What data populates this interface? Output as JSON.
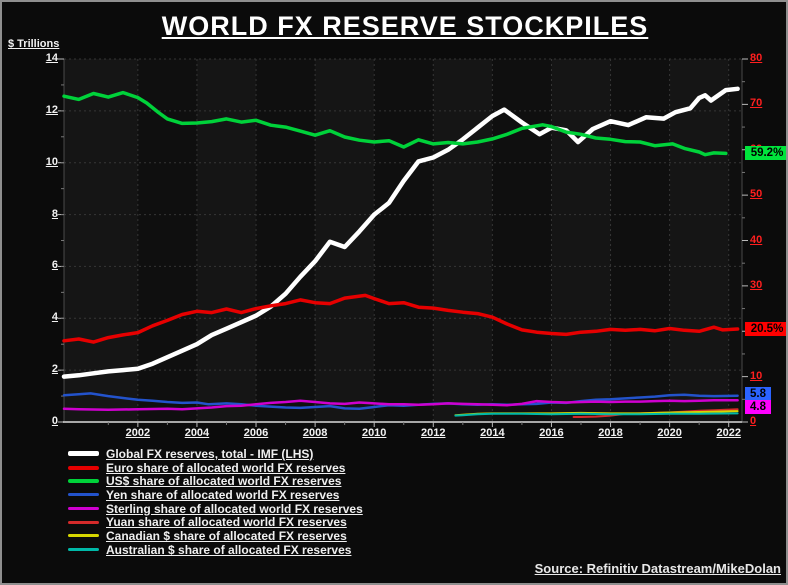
{
  "title": "WORLD FX RESERVE STOCKPILES",
  "left_axis_label": "$ Trillions",
  "source": "Source: Refinitiv Datastream/MikeDolan",
  "chart_data": {
    "type": "line",
    "title": "WORLD FX RESERVE STOCKPILES",
    "grid": true,
    "legend_position": "bottom-left",
    "x_axis": {
      "range": [
        1999.5,
        2022.45
      ],
      "ticks": [
        2002,
        2004,
        2006,
        2008,
        2010,
        2012,
        2014,
        2016,
        2018,
        2020,
        2022
      ]
    },
    "left_axis": {
      "label": "$ Trillions",
      "range": [
        0,
        14
      ],
      "ticks": [
        0,
        2,
        4,
        6,
        8,
        10,
        12,
        14
      ],
      "color": "#f2f2f2"
    },
    "right_axis": {
      "range": [
        0,
        80
      ],
      "ticks": [
        0,
        10,
        20,
        30,
        40,
        50,
        60,
        70,
        80
      ],
      "color": "#ff1f1f"
    },
    "series": [
      {
        "id": "global-fx-reserves",
        "name": "Global FX reserves, total - IMF (LHS)",
        "axis": "left",
        "color": "#ffffff",
        "width": 4.5,
        "points": [
          [
            1999.5,
            1.75
          ],
          [
            2000,
            1.8
          ],
          [
            2000.5,
            1.88
          ],
          [
            2001,
            1.95
          ],
          [
            2001.5,
            2.0
          ],
          [
            2002,
            2.05
          ],
          [
            2002.5,
            2.25
          ],
          [
            2003,
            2.5
          ],
          [
            2003.5,
            2.75
          ],
          [
            2004,
            3.0
          ],
          [
            2004.5,
            3.35
          ],
          [
            2005,
            3.6
          ],
          [
            2005.5,
            3.85
          ],
          [
            2006,
            4.1
          ],
          [
            2006.5,
            4.45
          ],
          [
            2007,
            4.95
          ],
          [
            2007.5,
            5.6
          ],
          [
            2008,
            6.2
          ],
          [
            2008.5,
            6.95
          ],
          [
            2009,
            6.75
          ],
          [
            2009.5,
            7.35
          ],
          [
            2010,
            8.0
          ],
          [
            2010.5,
            8.45
          ],
          [
            2011,
            9.3
          ],
          [
            2011.5,
            10.05
          ],
          [
            2012,
            10.2
          ],
          [
            2012.5,
            10.5
          ],
          [
            2013,
            10.9
          ],
          [
            2013.5,
            11.35
          ],
          [
            2014,
            11.8
          ],
          [
            2014.4,
            12.05
          ],
          [
            2015,
            11.55
          ],
          [
            2015.6,
            11.1
          ],
          [
            2016,
            11.35
          ],
          [
            2016.5,
            11.25
          ],
          [
            2016.9,
            10.8
          ],
          [
            2017.4,
            11.3
          ],
          [
            2018,
            11.6
          ],
          [
            2018.6,
            11.45
          ],
          [
            2019.2,
            11.75
          ],
          [
            2019.8,
            11.7
          ],
          [
            2020.2,
            11.95
          ],
          [
            2020.7,
            12.1
          ],
          [
            2021,
            12.5
          ],
          [
            2021.2,
            12.6
          ],
          [
            2021.4,
            12.4
          ],
          [
            2021.9,
            12.8
          ],
          [
            2022.3,
            12.85
          ]
        ]
      },
      {
        "id": "euro-share",
        "name": "Euro share of allocated world FX reserves",
        "axis": "right",
        "color": "#e60000",
        "width": 3.5,
        "points": [
          [
            1999.5,
            17.9
          ],
          [
            2000,
            18.3
          ],
          [
            2000.5,
            17.6
          ],
          [
            2001,
            18.6
          ],
          [
            2001.5,
            19.2
          ],
          [
            2002,
            19.7
          ],
          [
            2002.5,
            21.2
          ],
          [
            2003,
            22.4
          ],
          [
            2003.5,
            23.7
          ],
          [
            2004,
            24.4
          ],
          [
            2004.5,
            24.1
          ],
          [
            2005,
            24.9
          ],
          [
            2005.5,
            24.1
          ],
          [
            2006,
            25.0
          ],
          [
            2006.5,
            25.6
          ],
          [
            2007,
            26.1
          ],
          [
            2007.5,
            26.9
          ],
          [
            2008,
            26.3
          ],
          [
            2008.5,
            26.1
          ],
          [
            2009,
            27.3
          ],
          [
            2009.7,
            27.9
          ],
          [
            2010,
            27.2
          ],
          [
            2010.5,
            26.1
          ],
          [
            2011,
            26.3
          ],
          [
            2011.5,
            25.3
          ],
          [
            2012,
            25.1
          ],
          [
            2012.5,
            24.6
          ],
          [
            2013,
            24.2
          ],
          [
            2013.5,
            23.9
          ],
          [
            2014,
            23.1
          ],
          [
            2014.5,
            21.6
          ],
          [
            2015,
            20.3
          ],
          [
            2015.5,
            19.8
          ],
          [
            2016,
            19.5
          ],
          [
            2016.5,
            19.3
          ],
          [
            2017,
            19.8
          ],
          [
            2017.5,
            20.0
          ],
          [
            2018,
            20.4
          ],
          [
            2018.5,
            20.2
          ],
          [
            2019,
            20.4
          ],
          [
            2019.5,
            20.1
          ],
          [
            2020,
            20.6
          ],
          [
            2020.5,
            20.2
          ],
          [
            2021,
            20.0
          ],
          [
            2021.5,
            20.9
          ],
          [
            2021.8,
            20.3
          ],
          [
            2022.3,
            20.5
          ]
        ]
      },
      {
        "id": "usd-share",
        "name": "US$ share of allocated world FX reserves",
        "axis": "right",
        "color": "#00d23a",
        "width": 3.5,
        "points": [
          [
            1999.5,
            71.8
          ],
          [
            2000,
            71.1
          ],
          [
            2000.5,
            72.4
          ],
          [
            2001,
            71.6
          ],
          [
            2001.5,
            72.6
          ],
          [
            2002,
            71.5
          ],
          [
            2002.3,
            70.3
          ],
          [
            2002.7,
            68.2
          ],
          [
            2003,
            66.8
          ],
          [
            2003.5,
            65.8
          ],
          [
            2004,
            65.9
          ],
          [
            2004.5,
            66.2
          ],
          [
            2005,
            66.8
          ],
          [
            2005.5,
            66.1
          ],
          [
            2006,
            66.5
          ],
          [
            2006.5,
            65.4
          ],
          [
            2007,
            65.0
          ],
          [
            2007.5,
            64.1
          ],
          [
            2008,
            63.2
          ],
          [
            2008.5,
            64.2
          ],
          [
            2009,
            62.8
          ],
          [
            2009.5,
            62.1
          ],
          [
            2010,
            61.7
          ],
          [
            2010.5,
            62.0
          ],
          [
            2011,
            60.6
          ],
          [
            2011.5,
            62.2
          ],
          [
            2012,
            61.3
          ],
          [
            2012.5,
            61.6
          ],
          [
            2013,
            61.3
          ],
          [
            2013.5,
            61.7
          ],
          [
            2014,
            62.4
          ],
          [
            2014.5,
            63.4
          ],
          [
            2015,
            64.7
          ],
          [
            2015.7,
            65.5
          ],
          [
            2016,
            65.1
          ],
          [
            2016.5,
            63.9
          ],
          [
            2017,
            63.4
          ],
          [
            2017.5,
            62.6
          ],
          [
            2018,
            62.3
          ],
          [
            2018.5,
            61.8
          ],
          [
            2019,
            61.7
          ],
          [
            2019.5,
            60.9
          ],
          [
            2020.1,
            61.3
          ],
          [
            2020.5,
            60.3
          ],
          [
            2021,
            59.5
          ],
          [
            2021.2,
            58.9
          ],
          [
            2021.5,
            59.3
          ],
          [
            2021.9,
            59.2
          ]
        ]
      },
      {
        "id": "yen-share",
        "name": "Yen share of allocated world FX reserves",
        "axis": "right",
        "color": "#2353cc",
        "width": 2.5,
        "points": [
          [
            1999.5,
            5.9
          ],
          [
            2000,
            6.1
          ],
          [
            2000.4,
            6.3
          ],
          [
            2001,
            5.7
          ],
          [
            2001.5,
            5.3
          ],
          [
            2002,
            4.9
          ],
          [
            2002.5,
            4.7
          ],
          [
            2003,
            4.4
          ],
          [
            2003.5,
            4.2
          ],
          [
            2004,
            4.3
          ],
          [
            2004.4,
            3.9
          ],
          [
            2005,
            4.1
          ],
          [
            2005.5,
            3.9
          ],
          [
            2006,
            3.6
          ],
          [
            2006.5,
            3.4
          ],
          [
            2007,
            3.2
          ],
          [
            2007.5,
            3.1
          ],
          [
            2008,
            3.3
          ],
          [
            2008.5,
            3.5
          ],
          [
            2009,
            3.0
          ],
          [
            2009.5,
            2.9
          ],
          [
            2010,
            3.3
          ],
          [
            2010.5,
            3.7
          ],
          [
            2011,
            3.6
          ],
          [
            2011.5,
            3.8
          ],
          [
            2012,
            4.0
          ],
          [
            2012.5,
            4.1
          ],
          [
            2013,
            3.9
          ],
          [
            2013.5,
            3.8
          ],
          [
            2014,
            3.9
          ],
          [
            2014.5,
            3.8
          ],
          [
            2015,
            3.9
          ],
          [
            2015.5,
            4.0
          ],
          [
            2016,
            4.3
          ],
          [
            2016.5,
            4.2
          ],
          [
            2017,
            4.6
          ],
          [
            2017.5,
            4.9
          ],
          [
            2018,
            5.0
          ],
          [
            2018.5,
            5.2
          ],
          [
            2019,
            5.4
          ],
          [
            2019.5,
            5.6
          ],
          [
            2020,
            5.9
          ],
          [
            2020.5,
            6.0
          ],
          [
            2021,
            5.8
          ],
          [
            2021.5,
            5.7
          ],
          [
            2022.3,
            5.8
          ]
        ]
      },
      {
        "id": "sterling-share",
        "name": "Sterling share of allocated world FX reserves",
        "axis": "right",
        "color": "#cf00cf",
        "width": 2.5,
        "points": [
          [
            1999.5,
            2.9
          ],
          [
            2000,
            2.8
          ],
          [
            2001,
            2.7
          ],
          [
            2002,
            2.8
          ],
          [
            2003,
            2.9
          ],
          [
            2003.5,
            2.8
          ],
          [
            2004,
            3.0
          ],
          [
            2004.5,
            3.2
          ],
          [
            2005,
            3.5
          ],
          [
            2005.5,
            3.6
          ],
          [
            2006,
            3.9
          ],
          [
            2006.5,
            4.2
          ],
          [
            2007,
            4.4
          ],
          [
            2007.5,
            4.7
          ],
          [
            2008,
            4.4
          ],
          [
            2008.5,
            4.1
          ],
          [
            2009,
            4.0
          ],
          [
            2009.5,
            4.3
          ],
          [
            2010,
            4.1
          ],
          [
            2010.5,
            3.9
          ],
          [
            2011,
            3.9
          ],
          [
            2011.5,
            3.8
          ],
          [
            2012,
            3.9
          ],
          [
            2012.5,
            4.1
          ],
          [
            2013,
            4.0
          ],
          [
            2013.5,
            3.9
          ],
          [
            2014,
            3.8
          ],
          [
            2014.5,
            3.7
          ],
          [
            2015,
            4.0
          ],
          [
            2015.5,
            4.6
          ],
          [
            2016,
            4.4
          ],
          [
            2016.5,
            4.3
          ],
          [
            2017,
            4.4
          ],
          [
            2017.5,
            4.5
          ],
          [
            2018,
            4.4
          ],
          [
            2018.5,
            4.5
          ],
          [
            2019,
            4.5
          ],
          [
            2019.5,
            4.6
          ],
          [
            2020,
            4.7
          ],
          [
            2020.5,
            4.6
          ],
          [
            2021,
            4.7
          ],
          [
            2021.5,
            4.8
          ],
          [
            2022.3,
            4.8
          ]
        ]
      },
      {
        "id": "yuan-share",
        "name": "Yuan share of allocated world FX reserves",
        "axis": "right",
        "color": "#d42a2a",
        "width": 2,
        "points": [
          [
            2016.75,
            1.1
          ],
          [
            2017,
            1.1
          ],
          [
            2017.5,
            1.2
          ],
          [
            2018,
            1.4
          ],
          [
            2018.5,
            1.8
          ],
          [
            2019,
            1.9
          ],
          [
            2019.5,
            2.0
          ],
          [
            2020,
            2.1
          ],
          [
            2020.5,
            2.3
          ],
          [
            2021,
            2.5
          ],
          [
            2021.5,
            2.6
          ],
          [
            2022.3,
            2.8
          ]
        ]
      },
      {
        "id": "cad-share",
        "name": "Canadian $ share of allocated FX reserves",
        "axis": "right",
        "color": "#d6d600",
        "width": 2,
        "points": [
          [
            2012.75,
            1.5
          ],
          [
            2013,
            1.6
          ],
          [
            2013.5,
            1.8
          ],
          [
            2014,
            1.9
          ],
          [
            2015,
            1.9
          ],
          [
            2016,
            1.9
          ],
          [
            2017,
            2.0
          ],
          [
            2018,
            1.9
          ],
          [
            2019,
            1.9
          ],
          [
            2020,
            2.1
          ],
          [
            2021,
            2.2
          ],
          [
            2022.3,
            2.4
          ]
        ]
      },
      {
        "id": "aud-share",
        "name": "Australian $ share of allocated FX reserves",
        "axis": "right",
        "color": "#00b9a8",
        "width": 2,
        "points": [
          [
            2012.75,
            1.4
          ],
          [
            2013,
            1.5
          ],
          [
            2013.5,
            1.7
          ],
          [
            2014,
            1.8
          ],
          [
            2015,
            1.8
          ],
          [
            2016,
            1.7
          ],
          [
            2017,
            1.8
          ],
          [
            2018,
            1.7
          ],
          [
            2019,
            1.7
          ],
          [
            2020,
            1.8
          ],
          [
            2021,
            1.8
          ],
          [
            2022.3,
            1.9
          ]
        ]
      }
    ],
    "end_labels": [
      {
        "name": "usd-share-callout",
        "text": "59.2%",
        "bg": "#00e53c",
        "value": 59.2,
        "y_value": 59.2
      },
      {
        "name": "euro-share-callout",
        "text": "20.5%",
        "bg": "#ff0000",
        "value": 20.5,
        "y_value": 20.5
      },
      {
        "name": "yen-share-callout",
        "text": "5.8",
        "bg": "#2b63ff",
        "value": 5.8,
        "y_value": 6.1
      },
      {
        "name": "sterling-share-callout",
        "text": "4.8",
        "bg": "#ff00ff",
        "value": 4.8,
        "y_value": 3.3
      }
    ]
  }
}
